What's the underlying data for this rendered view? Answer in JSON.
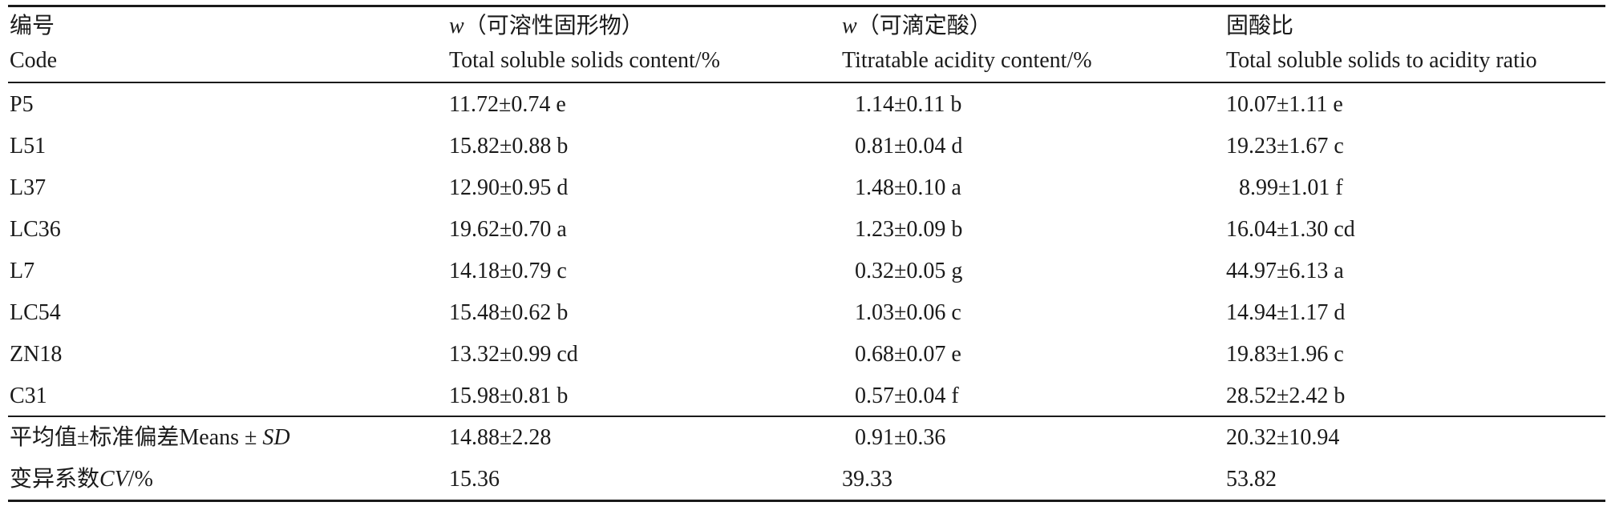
{
  "table": {
    "headers": [
      {
        "zh": "编号",
        "en": "Code"
      },
      {
        "zh_var": "w",
        "zh": "（可溶性固形物）",
        "en": "Total soluble solids content/%"
      },
      {
        "zh_var": "w",
        "zh": "（可滴定酸）",
        "en": "Titratable acidity content/%"
      },
      {
        "zh": "固酸比",
        "en": "Total soluble solids to acidity ratio"
      }
    ],
    "rows": [
      {
        "code": "P5",
        "tss": "11.72±0.74 e",
        "ta": "1.14±0.11 b",
        "ratio": "10.07±1.11 e"
      },
      {
        "code": "L51",
        "tss": "15.82±0.88 b",
        "ta": "0.81±0.04 d",
        "ratio": "19.23±1.67 c"
      },
      {
        "code": "L37",
        "tss": "12.90±0.95 d",
        "ta": "1.48±0.10 a",
        "ratio": "8.99±1.01 f"
      },
      {
        "code": "LC36",
        "tss": "19.62±0.70 a",
        "ta": "1.23±0.09 b",
        "ratio": "16.04±1.30 cd"
      },
      {
        "code": "L7",
        "tss": "14.18±0.79 c",
        "ta": "0.32±0.05 g",
        "ratio": "44.97±6.13 a"
      },
      {
        "code": "LC54",
        "tss": "15.48±0.62 b",
        "ta": "1.03±0.06 c",
        "ratio": "14.94±1.17 d"
      },
      {
        "code": "ZN18",
        "tss": "13.32±0.99 cd",
        "ta": "0.68±0.07 e",
        "ratio": "19.83±1.96 c"
      },
      {
        "code": "C31",
        "tss": "15.98±0.81 b",
        "ta": "0.57±0.04 f",
        "ratio": "28.52±2.42 b"
      }
    ],
    "summary": [
      {
        "label_zh": "平均值±标准偏差",
        "label_en": "Means ± ",
        "label_it": "SD",
        "tss": "14.88±2.28",
        "ta": "0.91±0.36",
        "ratio": "20.32±10.94"
      },
      {
        "label_zh": "变异系数",
        "label_en": "/%",
        "label_it": "CV",
        "tss": "15.36",
        "ta": "39.33",
        "ratio": "53.82"
      }
    ]
  }
}
